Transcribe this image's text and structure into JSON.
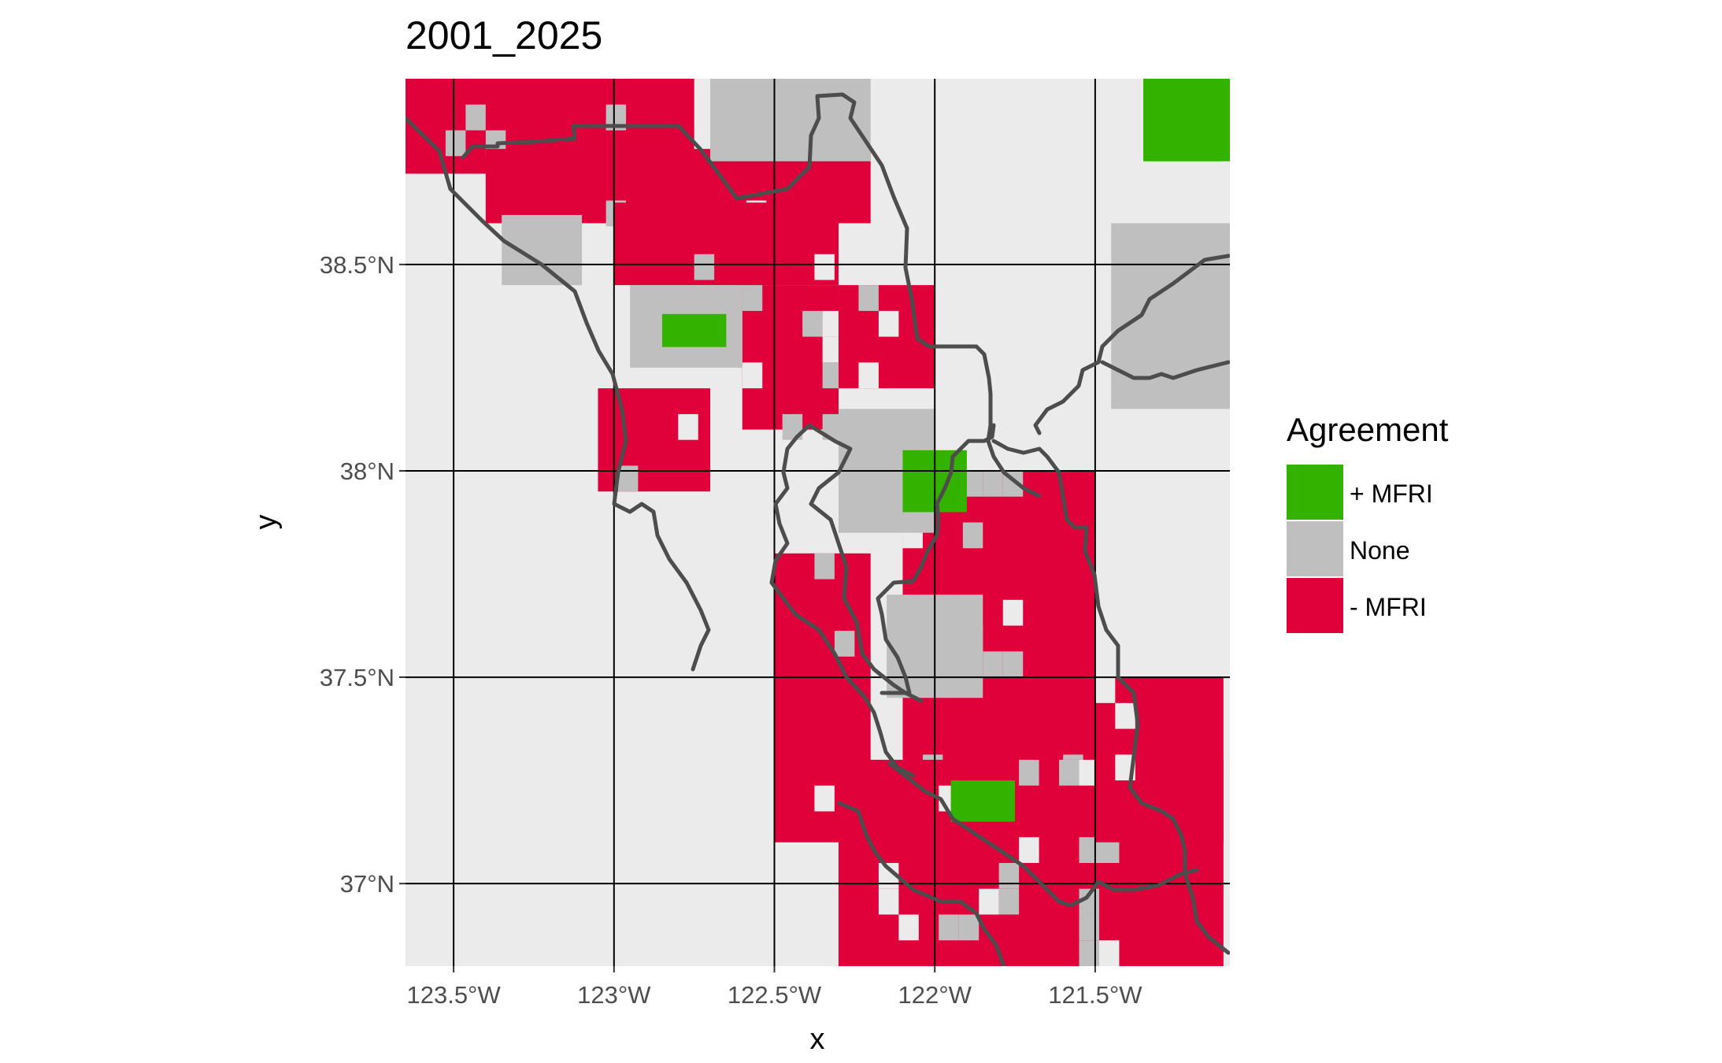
{
  "title": "2001_2025",
  "xlabel": "x",
  "ylabel": "y",
  "x_ticks": [
    "123.5°W",
    "123°W",
    "122.5°W",
    "122°W",
    "121.5°W"
  ],
  "y_ticks": [
    "38.5°N",
    "38°N",
    "37.5°N",
    "37°N"
  ],
  "legend": {
    "title": "Agreement",
    "items": [
      {
        "label": "+ MFRI",
        "color": "#33b300"
      },
      {
        "label": "None",
        "color": "#bfbfbf"
      },
      {
        "label": "- MFRI",
        "color": "#e0003a"
      }
    ]
  },
  "colors": {
    "panel_background": "#ebebeb",
    "graticule": "#000000",
    "county_outline": "#4d4d4d"
  },
  "chart_data": {
    "type": "heatmap",
    "title": "2001_2025",
    "xlabel": "x",
    "ylabel": "y",
    "x_range": [
      -123.65,
      -121.08
    ],
    "y_range": [
      36.8,
      38.95
    ],
    "x_ticks": [
      -123.5,
      -123.0,
      -122.5,
      -122.0,
      -121.5
    ],
    "y_ticks": [
      38.5,
      38.0,
      37.5,
      37.0
    ],
    "grid": true,
    "legend_position": "right",
    "categories": [
      "+ MFRI",
      "None",
      "- MFRI"
    ],
    "cell_size_deg": 0.0625,
    "regions": [
      {
        "category": "- MFRI",
        "lon": [
          -123.65,
          -122.75
        ],
        "lat": [
          38.72,
          38.95
        ]
      },
      {
        "category": "- MFRI",
        "lon": [
          -123.4,
          -122.2
        ],
        "lat": [
          38.6,
          38.78
        ]
      },
      {
        "category": "- MFRI",
        "lon": [
          -123.0,
          -122.3
        ],
        "lat": [
          38.45,
          38.65
        ]
      },
      {
        "category": "- MFRI",
        "lon": [
          -122.6,
          -122.3
        ],
        "lat": [
          38.1,
          38.45
        ]
      },
      {
        "category": "- MFRI",
        "lon": [
          -123.05,
          -122.7
        ],
        "lat": [
          37.95,
          38.2
        ]
      },
      {
        "category": "- MFRI",
        "lon": [
          -122.3,
          -122.0
        ],
        "lat": [
          38.2,
          38.45
        ]
      },
      {
        "category": "- MFRI",
        "lon": [
          -122.1,
          -121.5
        ],
        "lat": [
          37.25,
          38.0
        ]
      },
      {
        "category": "- MFRI",
        "lon": [
          -122.5,
          -122.2
        ],
        "lat": [
          37.1,
          37.8
        ]
      },
      {
        "category": "- MFRI",
        "lon": [
          -122.3,
          -121.1
        ],
        "lat": [
          36.8,
          37.3
        ]
      },
      {
        "category": "- MFRI",
        "lon": [
          -121.5,
          -121.1
        ],
        "lat": [
          37.1,
          37.5
        ]
      },
      {
        "category": "None",
        "lon": [
          -123.35,
          -123.1
        ],
        "lat": [
          38.45,
          38.62
        ]
      },
      {
        "category": "None",
        "lon": [
          -122.95,
          -122.6
        ],
        "lat": [
          38.25,
          38.45
        ]
      },
      {
        "category": "None",
        "lon": [
          -122.3,
          -122.0
        ],
        "lat": [
          37.85,
          38.15
        ]
      },
      {
        "category": "None",
        "lon": [
          -122.15,
          -121.85
        ],
        "lat": [
          37.45,
          37.7
        ]
      },
      {
        "category": "None",
        "lon": [
          -121.45,
          -121.08
        ],
        "lat": [
          38.15,
          38.6
        ]
      },
      {
        "category": "None",
        "lon": [
          -122.7,
          -122.2
        ],
        "lat": [
          38.75,
          38.95
        ]
      },
      {
        "category": "+ MFRI",
        "lon": [
          -121.35,
          -121.08
        ],
        "lat": [
          38.75,
          38.95
        ]
      },
      {
        "category": "+ MFRI",
        "lon": [
          -122.1,
          -121.9
        ],
        "lat": [
          37.9,
          38.05
        ]
      },
      {
        "category": "+ MFRI",
        "lon": [
          -122.85,
          -122.65
        ],
        "lat": [
          38.3,
          38.38
        ]
      },
      {
        "category": "+ MFRI",
        "lon": [
          -121.95,
          -121.75
        ],
        "lat": [
          37.15,
          37.25
        ]
      }
    ]
  }
}
